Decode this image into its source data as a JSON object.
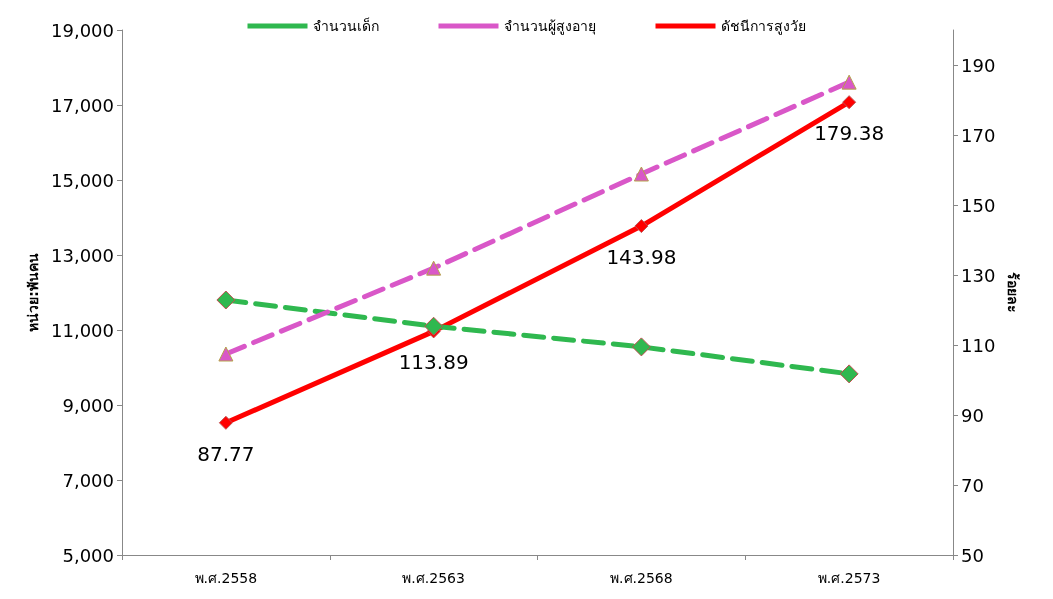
{
  "chart_data": {
    "type": "line",
    "categories": [
      "พ.ศ.2558",
      "พ.ศ.2563",
      "พ.ศ.2568",
      "พ.ศ.2573"
    ],
    "ylabel": "หน่วย:พันคน",
    "y2label": "ร้อยละ",
    "ylim": [
      5000,
      19000
    ],
    "yticks": [
      {
        "value": 5000,
        "label": "5,000"
      },
      {
        "value": 7000,
        "label": "7,000"
      },
      {
        "value": 9000,
        "label": "9,000"
      },
      {
        "value": 11000,
        "label": "11,000"
      },
      {
        "value": 13000,
        "label": "13,000"
      },
      {
        "value": 15000,
        "label": "15,000"
      },
      {
        "value": 17000,
        "label": "17,000"
      },
      {
        "value": 19000,
        "label": "19,000"
      }
    ],
    "y2lim": [
      50,
      200
    ],
    "y2ticks": [
      50,
      70,
      90,
      110,
      130,
      150,
      170,
      190
    ],
    "grid": false,
    "legend": "top",
    "series": [
      {
        "name": "จำนวนเด็ก",
        "color": "#2fb84f",
        "values": [
          11800,
          11100,
          10550,
          9830
        ],
        "marker": "diamond",
        "line_style": "dashed"
      },
      {
        "name": "จำนวนผู้สูงอายุ",
        "color": "#d957c8",
        "values": [
          10360,
          12650,
          15160,
          17610
        ],
        "marker": "triangle",
        "line_style": "dashed"
      },
      {
        "name": "ดัชนีการสูงวัย",
        "color": "#ff0000",
        "values": [
          87.77,
          113.89,
          143.98,
          179.38
        ],
        "marker": "diamond",
        "line_style": "solid",
        "axis": "y2",
        "data_labels": true
      }
    ]
  }
}
